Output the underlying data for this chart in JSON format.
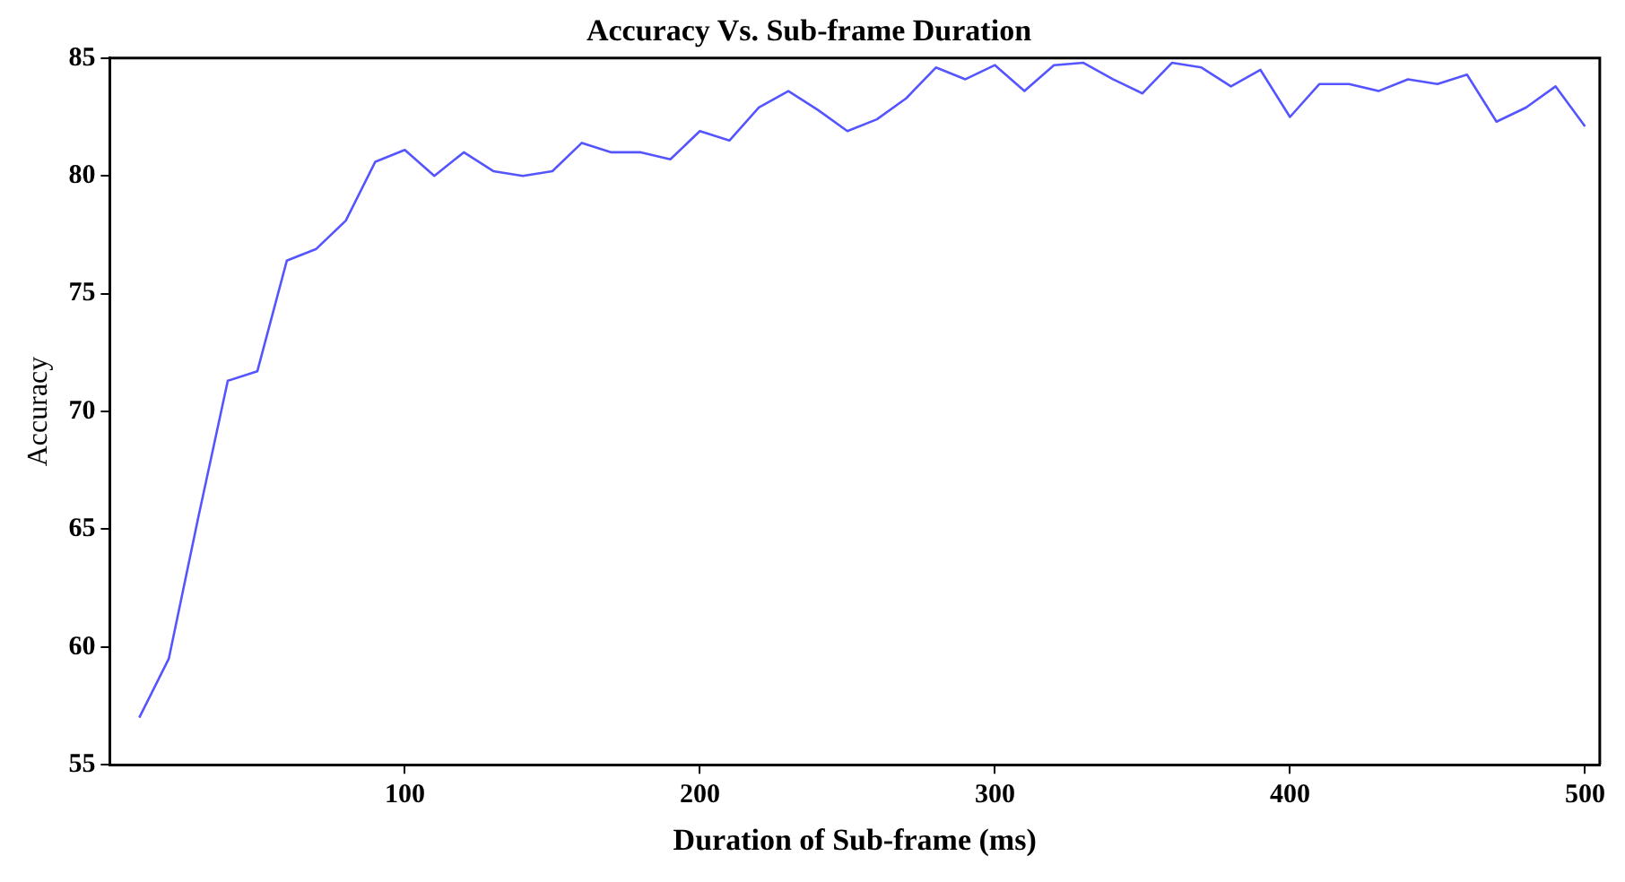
{
  "chart_data": {
    "type": "line",
    "title": "Accuracy Vs. Sub-frame Duration",
    "xlabel": "Duration of Sub-frame (ms)",
    "ylabel": "Accuracy",
    "x": [
      10,
      20,
      30,
      40,
      50,
      60,
      70,
      80,
      90,
      100,
      110,
      120,
      130,
      140,
      150,
      160,
      170,
      180,
      190,
      200,
      210,
      220,
      230,
      240,
      250,
      260,
      270,
      280,
      290,
      300,
      310,
      320,
      330,
      340,
      350,
      360,
      370,
      380,
      390,
      400,
      410,
      420,
      430,
      440,
      450,
      460,
      470,
      480,
      490,
      500
    ],
    "series": [
      {
        "color": "#5555ff",
        "values": [
          57.0,
          59.5,
          65.5,
          71.3,
          71.7,
          76.4,
          76.9,
          78.1,
          80.6,
          81.1,
          80.0,
          81.0,
          80.2,
          80.0,
          80.2,
          81.4,
          81.0,
          81.0,
          80.7,
          81.9,
          81.5,
          82.9,
          83.6,
          82.8,
          81.9,
          82.4,
          83.3,
          84.6,
          84.1,
          84.7,
          83.6,
          84.7,
          84.8,
          84.1,
          83.5,
          84.8,
          84.6,
          83.8,
          84.5,
          82.5,
          83.9,
          83.9,
          83.6,
          84.1,
          83.9,
          84.3,
          82.3,
          82.9,
          83.8,
          82.1
        ]
      }
    ],
    "xlim": [
      0,
      505
    ],
    "xticks": [
      100,
      200,
      300,
      400,
      500
    ],
    "ylim": [
      55,
      85
    ],
    "yticks": [
      55,
      60,
      65,
      70,
      75,
      80,
      85
    ],
    "grid": false,
    "legend": false,
    "marker": "none",
    "line_style": "solid"
  }
}
